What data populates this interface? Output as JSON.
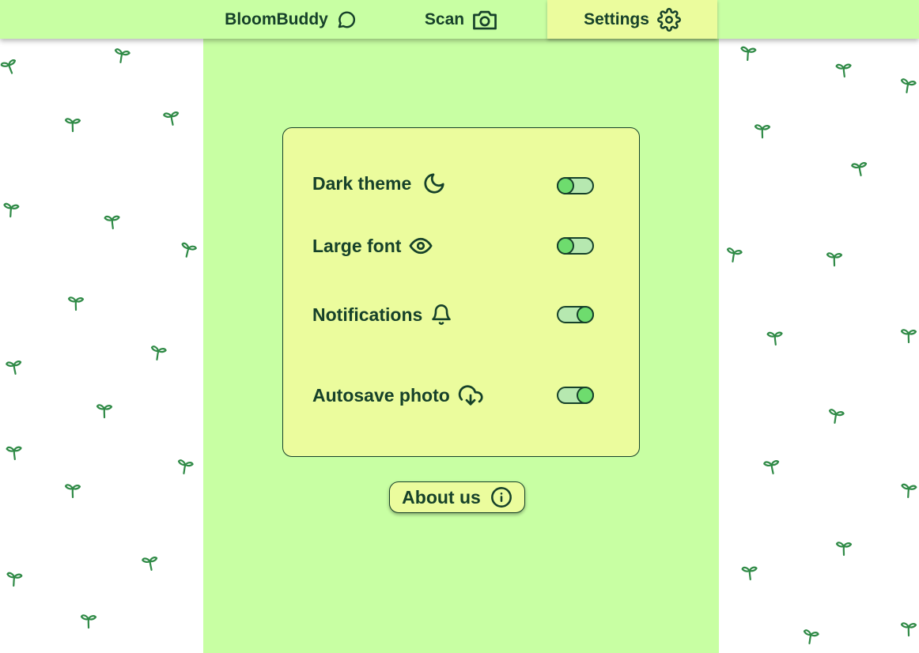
{
  "nav": {
    "brand_label": "BloomBuddy",
    "brand_icon": "message-circle-icon",
    "scan_label": "Scan",
    "scan_icon": "camera-icon",
    "settings_label": "Settings",
    "settings_icon": "gear-icon",
    "active_tab": "Settings"
  },
  "settings": {
    "items": [
      {
        "label": "Dark theme",
        "icon": "moon-icon",
        "enabled": false
      },
      {
        "label": "Large font",
        "icon": "eye-icon",
        "enabled": false
      },
      {
        "label": "Notifications",
        "icon": "bell-icon",
        "enabled": true
      },
      {
        "label": "Autosave photo",
        "icon": "cloud-download-icon",
        "enabled": true
      }
    ]
  },
  "about": {
    "label": "About us",
    "icon": "info-icon"
  },
  "colors": {
    "page_background": "#ffffff",
    "panel_green": "#c8ffa3",
    "card_yellow": "#ebfc9d",
    "ink": "#16412a",
    "sprout": "#2f8a46",
    "toggle_knob": "#6edc6e"
  }
}
